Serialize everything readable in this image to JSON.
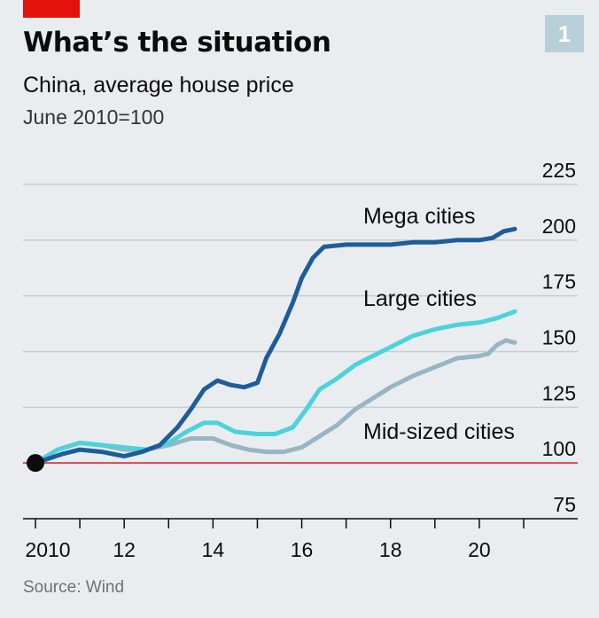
{
  "header": {
    "title": "What’s the situation",
    "subtitle": "China, average house price",
    "unit": "June 2010=100",
    "badge": "1"
  },
  "footer": {
    "source": "Source: Wind"
  },
  "colors": {
    "background": "#e9edf0",
    "red_accent": "#e3120b",
    "gridline": "#c8cdd1",
    "mega": "#1f5c99",
    "large": "#4dd2db",
    "mid": "#98b5c4",
    "baseline": "#db444b"
  },
  "chart_data": {
    "type": "line",
    "title": "What’s the situation",
    "subtitle": "China, average house price",
    "ylabel": "June 2010=100",
    "xlim": [
      2010.0,
      2021.0
    ],
    "ylim": [
      75,
      225
    ],
    "yticks": [
      75,
      100,
      125,
      150,
      175,
      200,
      225
    ],
    "xticks": [
      2010,
      2012,
      2014,
      2016,
      2018,
      2020
    ],
    "xtick_labels": [
      "2010",
      "12",
      "14",
      "16",
      "18",
      "20"
    ],
    "reference_line": 100,
    "grid": true,
    "start_marker": {
      "x": 2010.0,
      "y": 100
    },
    "series": [
      {
        "name": "Mega cities",
        "points": [
          [
            2010.0,
            100
          ],
          [
            2010.3,
            102
          ],
          [
            2010.6,
            104
          ],
          [
            2011.0,
            106
          ],
          [
            2011.5,
            105
          ],
          [
            2012.0,
            103
          ],
          [
            2012.4,
            105
          ],
          [
            2012.8,
            108
          ],
          [
            2013.2,
            116
          ],
          [
            2013.5,
            124
          ],
          [
            2013.8,
            133
          ],
          [
            2014.1,
            137
          ],
          [
            2014.4,
            135
          ],
          [
            2014.7,
            134
          ],
          [
            2015.0,
            136
          ],
          [
            2015.2,
            147
          ],
          [
            2015.5,
            158
          ],
          [
            2015.8,
            172
          ],
          [
            2016.0,
            183
          ],
          [
            2016.25,
            192
          ],
          [
            2016.5,
            197
          ],
          [
            2017.0,
            198
          ],
          [
            2017.5,
            198
          ],
          [
            2018.0,
            198
          ],
          [
            2018.5,
            199
          ],
          [
            2019.0,
            199
          ],
          [
            2019.5,
            200
          ],
          [
            2020.0,
            200
          ],
          [
            2020.3,
            201
          ],
          [
            2020.55,
            204
          ],
          [
            2020.8,
            205
          ]
        ]
      },
      {
        "name": "Large cities",
        "points": [
          [
            2010.0,
            100
          ],
          [
            2010.5,
            106
          ],
          [
            2011.0,
            109
          ],
          [
            2011.5,
            108
          ],
          [
            2012.0,
            107
          ],
          [
            2012.5,
            106
          ],
          [
            2013.0,
            109
          ],
          [
            2013.4,
            114
          ],
          [
            2013.8,
            118
          ],
          [
            2014.1,
            118
          ],
          [
            2014.5,
            114
          ],
          [
            2015.0,
            113
          ],
          [
            2015.4,
            113
          ],
          [
            2015.8,
            116
          ],
          [
            2016.1,
            124
          ],
          [
            2016.4,
            133
          ],
          [
            2016.8,
            138
          ],
          [
            2017.2,
            144
          ],
          [
            2017.6,
            148
          ],
          [
            2018.0,
            152
          ],
          [
            2018.5,
            157
          ],
          [
            2019.0,
            160
          ],
          [
            2019.5,
            162
          ],
          [
            2020.0,
            163
          ],
          [
            2020.4,
            165
          ],
          [
            2020.8,
            168
          ]
        ]
      },
      {
        "name": "Mid-sized cities",
        "points": [
          [
            2010.0,
            100
          ],
          [
            2010.5,
            106
          ],
          [
            2011.0,
            109
          ],
          [
            2011.5,
            108
          ],
          [
            2012.0,
            106
          ],
          [
            2012.5,
            106
          ],
          [
            2013.0,
            108
          ],
          [
            2013.5,
            111
          ],
          [
            2014.0,
            111
          ],
          [
            2014.4,
            108
          ],
          [
            2014.8,
            106
          ],
          [
            2015.2,
            105
          ],
          [
            2015.6,
            105
          ],
          [
            2016.0,
            107
          ],
          [
            2016.4,
            112
          ],
          [
            2016.8,
            117
          ],
          [
            2017.2,
            124
          ],
          [
            2017.6,
            129
          ],
          [
            2018.0,
            134
          ],
          [
            2018.5,
            139
          ],
          [
            2019.0,
            143
          ],
          [
            2019.5,
            147
          ],
          [
            2020.0,
            148
          ],
          [
            2020.2,
            149
          ],
          [
            2020.4,
            153
          ],
          [
            2020.6,
            155
          ],
          [
            2020.8,
            154
          ]
        ]
      }
    ],
    "labels": [
      "Mega cities",
      "Large cities",
      "Mid-sized cities"
    ]
  }
}
